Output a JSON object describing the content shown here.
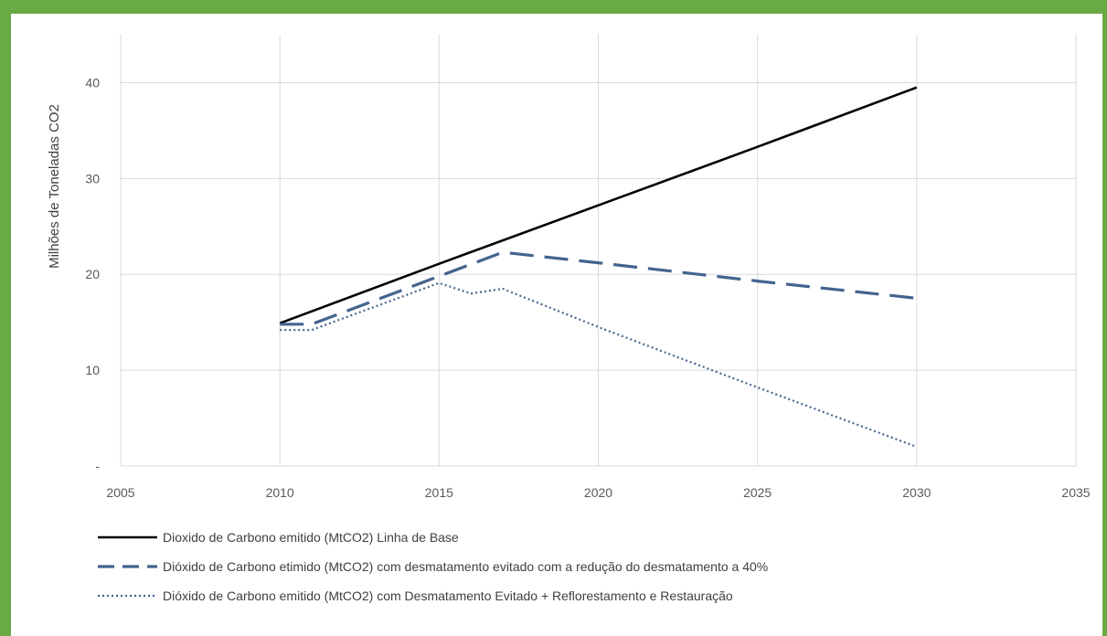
{
  "chart_data": {
    "type": "line",
    "title": "",
    "xlabel": "",
    "ylabel": "Milhões de Toneladas CO2",
    "xlim": [
      2005,
      2035
    ],
    "ylim": [
      0,
      45
    ],
    "x_ticks": [
      "2005",
      "2010",
      "2015",
      "2020",
      "2025",
      "2030",
      "2035"
    ],
    "y_ticks": [
      {
        "value": 0,
        "label": "-"
      },
      {
        "value": 10,
        "label": "10"
      },
      {
        "value": 20,
        "label": "20"
      },
      {
        "value": 30,
        "label": "30"
      },
      {
        "value": 40,
        "label": "40"
      }
    ],
    "grid": true,
    "legend_position": "bottom",
    "series": [
      {
        "name": "Dioxido de Carbono emitido (MtCO2) Linha de Base",
        "color": "#000000",
        "style": "solid",
        "x": [
          2010,
          2015,
          2020,
          2025,
          2030
        ],
        "y": [
          14.9,
          21.1,
          27.2,
          33.3,
          39.5
        ]
      },
      {
        "name": "Dióxido de Carbono etimido (MtCO2) com desmatamento evitado com a redução do desmatamento a 40%",
        "color": "#44648f",
        "style": "dashed",
        "x": [
          2010,
          2011,
          2015,
          2017,
          2020,
          2025,
          2030
        ],
        "y": [
          14.8,
          14.8,
          19.8,
          22.3,
          21.2,
          19.3,
          17.5
        ]
      },
      {
        "name": "Dióxido de Carbono emitido (MtCO2) com Desmatamento Evitado + Reflorestamento e Restauração",
        "color": "#44648f",
        "style": "dotted",
        "x": [
          2010,
          2011,
          2015,
          2016,
          2017,
          2020,
          2025,
          2030
        ],
        "y": [
          14.2,
          14.2,
          19.1,
          18.0,
          18.5,
          14.5,
          8.2,
          2.0
        ]
      }
    ]
  }
}
